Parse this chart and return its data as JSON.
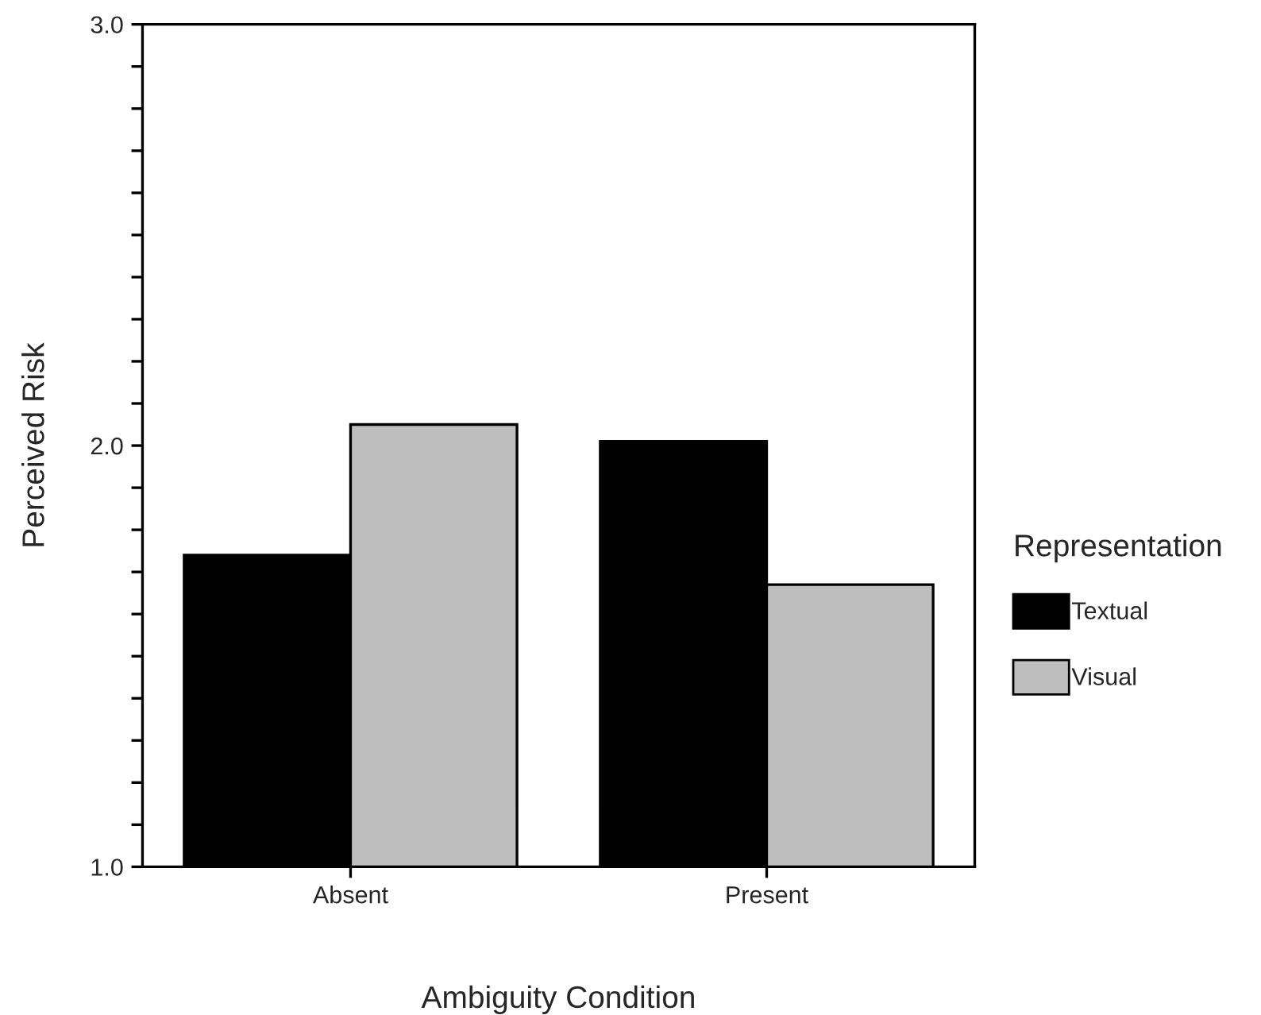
{
  "chart_data": {
    "type": "bar",
    "xlabel": "Ambiguity Condition",
    "ylabel": "Perceived Risk",
    "legend_title": "Representation",
    "categories": [
      "Absent",
      "Present"
    ],
    "series": [
      {
        "name": "Textual",
        "color": "#000000",
        "values": [
          1.74,
          2.01
        ]
      },
      {
        "name": "Visual",
        "color": "#bebebe",
        "values": [
          2.05,
          1.67
        ]
      }
    ],
    "ylim": [
      1.0,
      3.0
    ],
    "yticks": [
      {
        "value": 1.0,
        "label": "1.0"
      },
      {
        "value": 1.1,
        "label": null
      },
      {
        "value": 1.2,
        "label": null
      },
      {
        "value": 1.3,
        "label": null
      },
      {
        "value": 1.4,
        "label": null
      },
      {
        "value": 1.5,
        "label": null
      },
      {
        "value": 1.6,
        "label": null
      },
      {
        "value": 1.7,
        "label": null
      },
      {
        "value": 1.8,
        "label": null
      },
      {
        "value": 1.9,
        "label": null
      },
      {
        "value": 2.0,
        "label": "2.0"
      },
      {
        "value": 2.1,
        "label": null
      },
      {
        "value": 2.2,
        "label": null
      },
      {
        "value": 2.3,
        "label": null
      },
      {
        "value": 2.4,
        "label": null
      },
      {
        "value": 2.5,
        "label": null
      },
      {
        "value": 2.6,
        "label": null
      },
      {
        "value": 2.7,
        "label": null
      },
      {
        "value": 2.8,
        "label": null
      },
      {
        "value": 2.9,
        "label": null
      },
      {
        "value": 3.0,
        "label": "3.0"
      }
    ],
    "grid": false,
    "legend": "right"
  }
}
